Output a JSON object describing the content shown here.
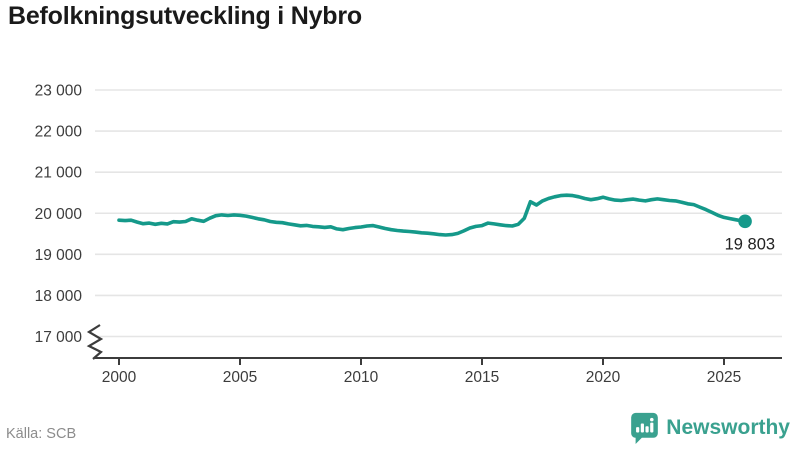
{
  "header": {
    "title": "Befolkningsutveckling i Nybro"
  },
  "footer": {
    "source": "Källa: SCB",
    "brand": "Newsworthy"
  },
  "colors": {
    "line": "#15998a",
    "grid": "#e5e5e5",
    "axis": "#3c3c3c",
    "tick_text": "#3c3c3c",
    "title_text": "#1a1a1a",
    "source_text": "#8c8c8c",
    "brand_teal": "#3aa18f",
    "annotation_text": "#222222"
  },
  "chart_data": {
    "type": "line",
    "title": "Befolkningsutveckling i Nybro",
    "xlabel": "",
    "ylabel": "",
    "grid": "horizontal",
    "legend": "none",
    "axis_break_bottom": true,
    "xlim": [
      2000,
      2027.4
    ],
    "ylim": [
      17000,
      23000
    ],
    "x_ticks": [
      {
        "value": 2000,
        "label": "2000"
      },
      {
        "value": 2005,
        "label": "2005"
      },
      {
        "value": 2010,
        "label": "2010"
      },
      {
        "value": 2015,
        "label": "2015"
      },
      {
        "value": 2020,
        "label": "2020"
      },
      {
        "value": 2025,
        "label": "2025"
      }
    ],
    "y_ticks": [
      {
        "value": 23000,
        "label": "23 000"
      },
      {
        "value": 22000,
        "label": "22 000"
      },
      {
        "value": 21000,
        "label": "21 000"
      },
      {
        "value": 20000,
        "label": "20 000"
      },
      {
        "value": 19000,
        "label": "19 000"
      },
      {
        "value": 18000,
        "label": "18 000"
      },
      {
        "value": 17000,
        "label": "17 000"
      }
    ],
    "series": [
      {
        "name": "Befolkning i Nybro",
        "color": "#15998a",
        "points": [
          [
            2000.0,
            19830
          ],
          [
            2000.25,
            19820
          ],
          [
            2000.5,
            19830
          ],
          [
            2000.75,
            19785
          ],
          [
            2001.0,
            19745
          ],
          [
            2001.25,
            19760
          ],
          [
            2001.5,
            19730
          ],
          [
            2001.75,
            19755
          ],
          [
            2002.0,
            19740
          ],
          [
            2002.25,
            19795
          ],
          [
            2002.5,
            19785
          ],
          [
            2002.75,
            19800
          ],
          [
            2003.0,
            19865
          ],
          [
            2003.25,
            19830
          ],
          [
            2003.5,
            19805
          ],
          [
            2003.75,
            19880
          ],
          [
            2004.0,
            19940
          ],
          [
            2004.25,
            19960
          ],
          [
            2004.5,
            19945
          ],
          [
            2004.75,
            19960
          ],
          [
            2005.0,
            19950
          ],
          [
            2005.25,
            19930
          ],
          [
            2005.5,
            19900
          ],
          [
            2005.75,
            19865
          ],
          [
            2006.0,
            19840
          ],
          [
            2006.25,
            19800
          ],
          [
            2006.5,
            19780
          ],
          [
            2006.75,
            19770
          ],
          [
            2007.0,
            19740
          ],
          [
            2007.25,
            19720
          ],
          [
            2007.5,
            19695
          ],
          [
            2007.75,
            19705
          ],
          [
            2008.0,
            19680
          ],
          [
            2008.25,
            19670
          ],
          [
            2008.5,
            19655
          ],
          [
            2008.75,
            19670
          ],
          [
            2009.0,
            19620
          ],
          [
            2009.25,
            19600
          ],
          [
            2009.5,
            19630
          ],
          [
            2009.75,
            19650
          ],
          [
            2010.0,
            19665
          ],
          [
            2010.25,
            19690
          ],
          [
            2010.5,
            19700
          ],
          [
            2010.75,
            19665
          ],
          [
            2011.0,
            19630
          ],
          [
            2011.25,
            19600
          ],
          [
            2011.5,
            19580
          ],
          [
            2011.75,
            19565
          ],
          [
            2012.0,
            19555
          ],
          [
            2012.25,
            19540
          ],
          [
            2012.5,
            19525
          ],
          [
            2012.75,
            19515
          ],
          [
            2013.0,
            19500
          ],
          [
            2013.25,
            19480
          ],
          [
            2013.5,
            19470
          ],
          [
            2013.75,
            19480
          ],
          [
            2014.0,
            19510
          ],
          [
            2014.25,
            19570
          ],
          [
            2014.5,
            19640
          ],
          [
            2014.75,
            19680
          ],
          [
            2015.0,
            19700
          ],
          [
            2015.25,
            19760
          ],
          [
            2015.5,
            19740
          ],
          [
            2015.75,
            19720
          ],
          [
            2016.0,
            19700
          ],
          [
            2016.25,
            19690
          ],
          [
            2016.5,
            19730
          ],
          [
            2016.75,
            19880
          ],
          [
            2017.0,
            20280
          ],
          [
            2017.25,
            20200
          ],
          [
            2017.5,
            20300
          ],
          [
            2017.75,
            20360
          ],
          [
            2018.0,
            20400
          ],
          [
            2018.25,
            20430
          ],
          [
            2018.5,
            20440
          ],
          [
            2018.75,
            20430
          ],
          [
            2019.0,
            20400
          ],
          [
            2019.25,
            20360
          ],
          [
            2019.5,
            20330
          ],
          [
            2019.75,
            20355
          ],
          [
            2020.0,
            20390
          ],
          [
            2020.25,
            20350
          ],
          [
            2020.5,
            20320
          ],
          [
            2020.75,
            20310
          ],
          [
            2021.0,
            20330
          ],
          [
            2021.25,
            20345
          ],
          [
            2021.5,
            20320
          ],
          [
            2021.75,
            20300
          ],
          [
            2022.0,
            20330
          ],
          [
            2022.25,
            20350
          ],
          [
            2022.5,
            20330
          ],
          [
            2022.75,
            20310
          ],
          [
            2023.0,
            20300
          ],
          [
            2023.25,
            20270
          ],
          [
            2023.5,
            20230
          ],
          [
            2023.75,
            20210
          ],
          [
            2024.0,
            20150
          ],
          [
            2024.25,
            20090
          ],
          [
            2024.5,
            20020
          ],
          [
            2024.75,
            19950
          ],
          [
            2025.0,
            19900
          ],
          [
            2025.25,
            19870
          ],
          [
            2025.5,
            19840
          ],
          [
            2025.75,
            19815
          ],
          [
            2025.87,
            19803
          ]
        ]
      }
    ],
    "end_annotation": {
      "x": 2025.87,
      "y": 19803,
      "label": "19 803"
    }
  }
}
